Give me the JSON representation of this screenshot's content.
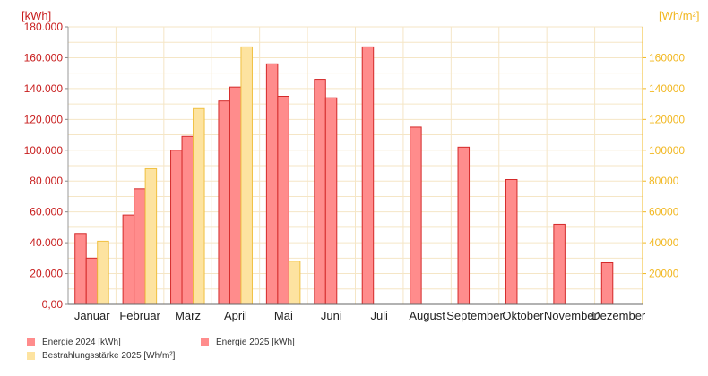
{
  "chart_data": {
    "type": "bar",
    "categories": [
      "Januar",
      "Februar",
      "März",
      "April",
      "Mai",
      "Juni",
      "Juli",
      "August",
      "September",
      "Oktober",
      "November",
      "Dezember"
    ],
    "y_left": {
      "unit": "[kWh]",
      "range": [
        0,
        180000
      ],
      "ticks": [
        0,
        20000,
        40000,
        60000,
        80000,
        100000,
        120000,
        140000,
        160000,
        180000
      ],
      "tick_labels": [
        "0,00",
        "20.000",
        "40.000",
        "60.000",
        "80.000",
        "100.000",
        "120.000",
        "140.000",
        "160.000",
        "180.000"
      ]
    },
    "y_right": {
      "unit": "[Wh/m²]",
      "range": [
        0,
        180000
      ],
      "ticks": [
        20000,
        40000,
        60000,
        80000,
        100000,
        120000,
        140000,
        160000
      ],
      "tick_labels": [
        "20000",
        "40000",
        "60000",
        "80000",
        "100000",
        "120000",
        "140000",
        "160000"
      ]
    },
    "series": [
      {
        "name": "Energie 2024 [kWh]",
        "axis": "left",
        "color": "#ff8c8c",
        "border": "#d42a2a",
        "values": [
          46000,
          58000,
          100000,
          132000,
          156000,
          146000,
          167000,
          115000,
          102000,
          81000,
          52000,
          27000
        ]
      },
      {
        "name": "Energie 2025 [kWh]",
        "axis": "left",
        "color": "#ff8c8c",
        "border": "#d42a2a",
        "values": [
          30000,
          75000,
          109000,
          141000,
          135000,
          134000,
          null,
          null,
          null,
          null,
          null,
          null
        ]
      },
      {
        "name": "Bestrahlungsstärke 2025 [Wh/m²]",
        "axis": "right",
        "color": "#fde3a0",
        "border": "#f0c040",
        "values": [
          41000,
          88000,
          127000,
          167000,
          28000,
          null,
          null,
          null,
          null,
          null,
          null,
          null
        ]
      }
    ],
    "grid": true,
    "legend_position": "bottom-left",
    "colors": {
      "left_axis": "#c81e1e",
      "right_axis": "#f2b822",
      "grid": "#f5e6c6"
    }
  }
}
